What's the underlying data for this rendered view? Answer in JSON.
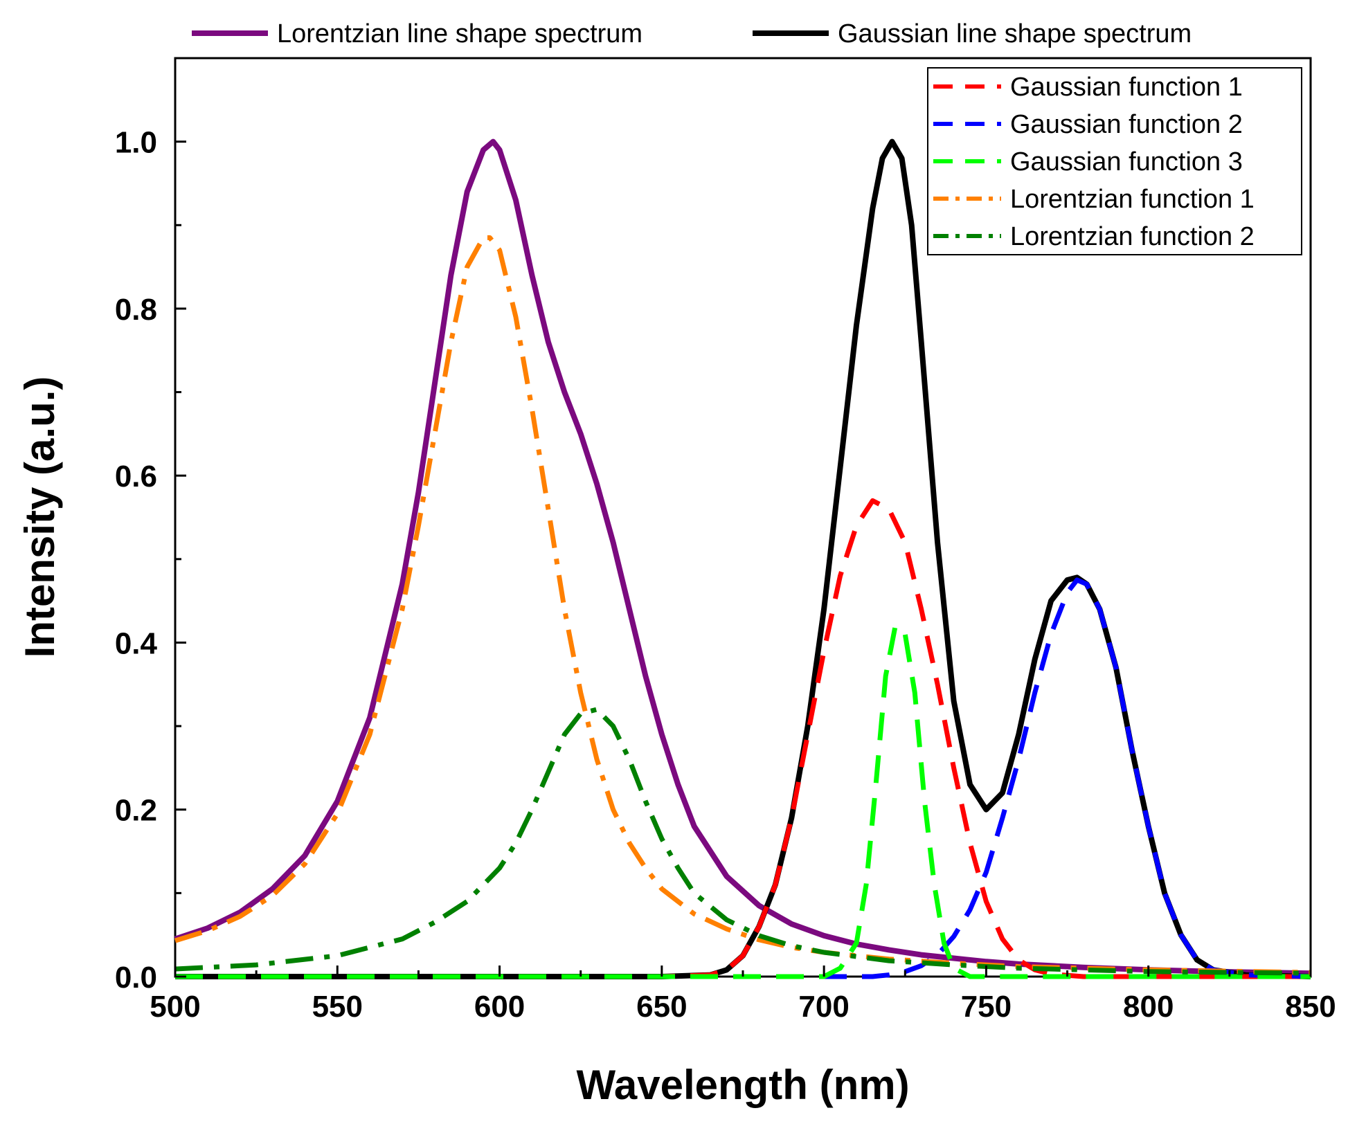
{
  "chart_data": {
    "type": "line",
    "title": "",
    "xlabel": "Wavelength (nm)",
    "ylabel": "Intensity (a.u.)",
    "xlim": [
      500,
      850
    ],
    "ylim": [
      0.0,
      1.1
    ],
    "x_ticks": [
      500,
      550,
      600,
      650,
      700,
      750,
      800,
      850
    ],
    "x_tick_labels": [
      "500",
      "550",
      "600",
      "650",
      "700",
      "750",
      "800",
      "850"
    ],
    "y_ticks": [
      0.0,
      0.2,
      0.4,
      0.6,
      0.8,
      1.0
    ],
    "y_tick_labels": [
      "0.0",
      "0.2",
      "0.4",
      "0.6",
      "0.8",
      "1.0"
    ],
    "grid": false,
    "top_legend": [
      {
        "label": "Lorentzian line shape spectrum",
        "series": "lorentz_spectrum"
      },
      {
        "label": "Gaussian line shape spectrum",
        "series": "gauss_spectrum"
      }
    ],
    "inner_legend_position": "top-right",
    "inner_legend": [
      {
        "label": "Gaussian function 1",
        "series": "gauss1"
      },
      {
        "label": "Gaussian function 2",
        "series": "gauss2"
      },
      {
        "label": "Gaussian function 3",
        "series": "gauss3"
      },
      {
        "label": "Lorentzian function 1",
        "series": "lorentz1"
      },
      {
        "label": "Lorentzian function 2",
        "series": "lorentz2"
      }
    ],
    "series": [
      {
        "id": "lorentz_spectrum",
        "name": "Lorentzian line shape spectrum",
        "color": "#7b0a7f",
        "dash": "solid",
        "x": [
          500,
          510,
          520,
          530,
          540,
          550,
          560,
          570,
          575,
          580,
          585,
          590,
          595,
          598,
          600,
          605,
          610,
          615,
          620,
          625,
          630,
          635,
          640,
          645,
          650,
          655,
          660,
          670,
          680,
          690,
          700,
          710,
          720,
          730,
          740,
          750,
          760,
          780,
          800,
          820,
          850
        ],
        "y": [
          0.045,
          0.058,
          0.077,
          0.105,
          0.145,
          0.21,
          0.31,
          0.47,
          0.58,
          0.71,
          0.84,
          0.94,
          0.99,
          1.0,
          0.99,
          0.93,
          0.84,
          0.76,
          0.7,
          0.65,
          0.59,
          0.52,
          0.44,
          0.36,
          0.29,
          0.23,
          0.18,
          0.12,
          0.085,
          0.063,
          0.049,
          0.039,
          0.032,
          0.026,
          0.022,
          0.018,
          0.015,
          0.011,
          0.008,
          0.006,
          0.004
        ]
      },
      {
        "id": "gauss_spectrum",
        "name": "Gaussian line shape spectrum",
        "color": "#000000",
        "dash": "solid",
        "x": [
          500,
          650,
          665,
          670,
          675,
          680,
          685,
          690,
          695,
          700,
          705,
          710,
          715,
          718,
          721,
          724,
          727,
          730,
          735,
          740,
          745,
          750,
          755,
          760,
          765,
          770,
          775,
          778,
          781,
          785,
          790,
          795,
          800,
          805,
          810,
          815,
          820,
          830,
          850
        ],
        "y": [
          0.0,
          0.0,
          0.002,
          0.008,
          0.025,
          0.06,
          0.11,
          0.19,
          0.3,
          0.44,
          0.61,
          0.78,
          0.92,
          0.98,
          1.0,
          0.98,
          0.9,
          0.76,
          0.52,
          0.33,
          0.23,
          0.2,
          0.22,
          0.29,
          0.38,
          0.45,
          0.475,
          0.478,
          0.47,
          0.44,
          0.37,
          0.27,
          0.18,
          0.1,
          0.05,
          0.02,
          0.008,
          0.002,
          0.0
        ]
      },
      {
        "id": "gauss1",
        "name": "Gaussian function 1",
        "color": "#ff0000",
        "dash": "long-dash",
        "x": [
          500,
          650,
          665,
          670,
          675,
          680,
          685,
          690,
          695,
          700,
          705,
          710,
          715,
          720,
          725,
          730,
          735,
          740,
          745,
          750,
          755,
          760,
          765,
          770,
          780,
          850
        ],
        "y": [
          0.0,
          0.0,
          0.002,
          0.008,
          0.025,
          0.06,
          0.11,
          0.19,
          0.29,
          0.39,
          0.48,
          0.54,
          0.57,
          0.56,
          0.52,
          0.44,
          0.35,
          0.25,
          0.16,
          0.09,
          0.045,
          0.02,
          0.008,
          0.003,
          0.0,
          0.0
        ]
      },
      {
        "id": "gauss2",
        "name": "Gaussian function 2",
        "color": "#0000ff",
        "dash": "long-dash",
        "x": [
          500,
          715,
          720,
          725,
          730,
          735,
          740,
          745,
          750,
          755,
          760,
          765,
          770,
          775,
          778,
          781,
          785,
          790,
          795,
          800,
          805,
          810,
          815,
          820,
          830,
          850
        ],
        "y": [
          0.0,
          0.0,
          0.002,
          0.006,
          0.013,
          0.026,
          0.048,
          0.08,
          0.125,
          0.19,
          0.26,
          0.34,
          0.41,
          0.46,
          0.475,
          0.47,
          0.44,
          0.37,
          0.27,
          0.18,
          0.1,
          0.05,
          0.02,
          0.008,
          0.002,
          0.0
        ]
      },
      {
        "id": "gauss3",
        "name": "Gaussian function 3",
        "color": "#00ff00",
        "dash": "long-dash",
        "x": [
          500,
          700,
          705,
          710,
          713,
          716,
          719,
          722,
          725,
          728,
          731,
          734,
          737,
          740,
          745,
          850
        ],
        "y": [
          0.0,
          0.0,
          0.01,
          0.04,
          0.11,
          0.23,
          0.36,
          0.42,
          0.41,
          0.34,
          0.21,
          0.11,
          0.04,
          0.01,
          0.0,
          0.0
        ]
      },
      {
        "id": "lorentz1",
        "name": "Lorentzian function 1",
        "color": "#ff8000",
        "dash": "dash-dot",
        "x": [
          500,
          510,
          520,
          530,
          540,
          550,
          560,
          570,
          575,
          580,
          585,
          590,
          595,
          597,
          600,
          605,
          610,
          615,
          620,
          625,
          630,
          635,
          640,
          645,
          650,
          660,
          670,
          680,
          690,
          700,
          720,
          740,
          760,
          780,
          800,
          850
        ],
        "y": [
          0.043,
          0.055,
          0.072,
          0.097,
          0.135,
          0.195,
          0.29,
          0.44,
          0.54,
          0.65,
          0.76,
          0.85,
          0.885,
          0.885,
          0.87,
          0.79,
          0.68,
          0.56,
          0.44,
          0.34,
          0.26,
          0.2,
          0.16,
          0.13,
          0.105,
          0.075,
          0.057,
          0.044,
          0.035,
          0.029,
          0.021,
          0.016,
          0.012,
          0.01,
          0.008,
          0.005
        ]
      },
      {
        "id": "lorentz2",
        "name": "Lorentzian function 2",
        "color": "#008000",
        "dash": "dash-dot",
        "x": [
          500,
          525,
          550,
          570,
          580,
          590,
          600,
          605,
          610,
          615,
          620,
          625,
          630,
          635,
          640,
          645,
          650,
          655,
          660,
          670,
          680,
          690,
          700,
          720,
          740,
          760,
          780,
          800,
          850
        ],
        "y": [
          0.009,
          0.014,
          0.025,
          0.045,
          0.065,
          0.09,
          0.13,
          0.16,
          0.2,
          0.245,
          0.29,
          0.315,
          0.32,
          0.3,
          0.26,
          0.21,
          0.165,
          0.13,
          0.1,
          0.068,
          0.049,
          0.037,
          0.029,
          0.019,
          0.014,
          0.01,
          0.008,
          0.006,
          0.004
        ]
      }
    ]
  }
}
